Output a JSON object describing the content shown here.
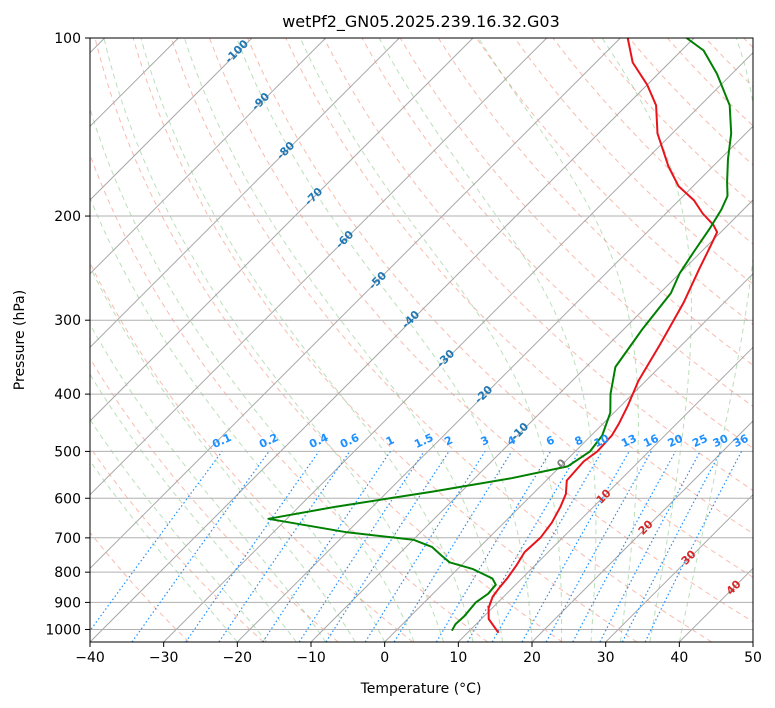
{
  "chart_data": {
    "type": "line",
    "title": "wetPf2_GN05.2025.239.16.32.G03",
    "xlabel": "Temperature (°C)",
    "ylabel": "Pressure (hPa)",
    "xlim": [
      -40,
      50
    ],
    "ylim": [
      1050,
      100
    ],
    "y_scale": "log",
    "grid": true,
    "x_ticks": [
      -40,
      -30,
      -20,
      -10,
      0,
      10,
      20,
      30,
      40,
      50
    ],
    "y_ticks": [
      100,
      200,
      300,
      400,
      500,
      600,
      700,
      800,
      900,
      1000
    ],
    "isotherm_labels": [
      -100,
      -90,
      -80,
      -70,
      -60,
      -50,
      -40,
      -30,
      -20,
      -10,
      0
    ],
    "mixing_ratio_labels": [
      "0.1",
      "0.2",
      "0.4",
      "0.6",
      "1",
      "1.5",
      "2",
      "3",
      "4",
      "6",
      "8",
      "10",
      "13",
      "16",
      "20",
      "25",
      "30",
      "36"
    ],
    "dry_adiabat_labels": [
      10,
      20,
      30,
      40
    ],
    "series": [
      {
        "color": "#e8141c",
        "x": [
          14.2,
          11.0,
          9.5,
          8.5,
          8.2,
          8.0,
          7.5,
          6.8,
          7.0,
          6.5,
          5.5,
          4.5,
          2.8,
          2.5,
          3.0,
          2.8,
          2.2,
          1.0,
          -1.0,
          -3.0,
          -5.5,
          -8.0,
          -9.5,
          -10.5,
          -12.0,
          -15.0,
          -18.0,
          -22.0,
          -26.0,
          -32.0,
          -36.0,
          -40.0,
          -45.0,
          -49.0
        ],
        "y": [
          1013,
          960,
          920,
          880,
          850,
          820,
          780,
          740,
          700,
          660,
          620,
          590,
          560,
          520,
          500,
          470,
          450,
          420,
          380,
          330,
          280,
          245,
          225,
          213,
          207,
          198,
          188,
          178,
          165,
          145,
          130,
          120,
          110,
          100
        ]
      },
      {
        "color": "#008000",
        "x": [
          7.6,
          7.2,
          7.3,
          7.0,
          7.5,
          7.3,
          6.0,
          2.0,
          -2.0,
          -4.0,
          -6.5,
          -10.0,
          -20.0,
          -32.5,
          -25.0,
          -14.0,
          -5.0,
          1.0,
          2.0,
          1.5,
          -0.5,
          -3.0,
          -6.0,
          -7.5,
          -8.5,
          -10.0,
          -11.0,
          -12.0,
          -13.0,
          -14.0,
          -16.0,
          -19.0,
          -22.0,
          -26.0,
          -32.0,
          -37.0,
          -41.0
        ],
        "y": [
          1005,
          980,
          950,
          900,
          870,
          840,
          820,
          790,
          770,
          750,
          725,
          705,
          685,
          650,
          620,
          585,
          555,
          530,
          500,
          470,
          430,
          400,
          360,
          310,
          270,
          250,
          230,
          210,
          195,
          185,
          175,
          160,
          145,
          130,
          115,
          105,
          100
        ]
      }
    ]
  }
}
